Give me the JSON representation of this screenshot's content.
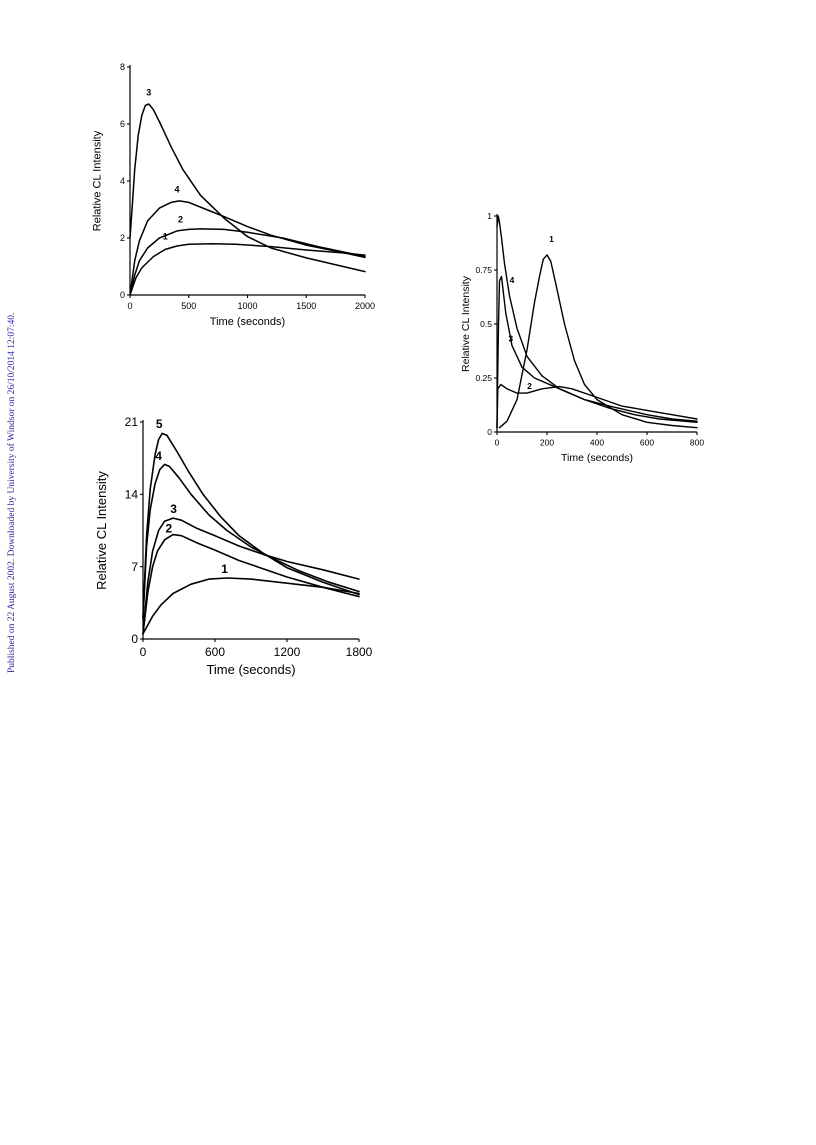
{
  "watermark": "Published on 22 August 2002. Downloaded by University of Windsor on 26/10/2014 12:07:40.",
  "chart_data": [
    {
      "type": "line",
      "title": "",
      "xlabel": "Time (seconds)",
      "ylabel": "Relative CL Intensity",
      "xlim": [
        0,
        2000
      ],
      "ylim": [
        0,
        8
      ],
      "xticks": [
        "0",
        "500",
        "1000",
        "1500",
        "2000"
      ],
      "yticks": [
        "0",
        "2",
        "4",
        "6",
        "8"
      ],
      "grid": false,
      "legend": "none",
      "series": [
        {
          "label": "1",
          "label_pos": [
            300,
            1.95
          ],
          "points": [
            [
              0,
              0
            ],
            [
              50,
              0.6
            ],
            [
              100,
              0.95
            ],
            [
              200,
              1.35
            ],
            [
              300,
              1.6
            ],
            [
              400,
              1.72
            ],
            [
              500,
              1.78
            ],
            [
              700,
              1.8
            ],
            [
              900,
              1.78
            ],
            [
              1200,
              1.7
            ],
            [
              1500,
              1.58
            ],
            [
              1800,
              1.48
            ],
            [
              2000,
              1.4
            ]
          ]
        },
        {
          "label": "2",
          "label_pos": [
            430,
            2.55
          ],
          "points": [
            [
              0,
              0
            ],
            [
              40,
              0.7
            ],
            [
              80,
              1.2
            ],
            [
              150,
              1.65
            ],
            [
              250,
              2.0
            ],
            [
              400,
              2.25
            ],
            [
              500,
              2.3
            ],
            [
              600,
              2.32
            ],
            [
              800,
              2.3
            ],
            [
              1000,
              2.2
            ],
            [
              1300,
              2.0
            ],
            [
              1600,
              1.7
            ],
            [
              2000,
              1.35
            ]
          ]
        },
        {
          "label": "3",
          "label_pos": [
            160,
            7.0
          ],
          "points": [
            [
              0,
              2.0
            ],
            [
              20,
              3.2
            ],
            [
              40,
              4.4
            ],
            [
              70,
              5.6
            ],
            [
              100,
              6.3
            ],
            [
              130,
              6.65
            ],
            [
              160,
              6.7
            ],
            [
              200,
              6.5
            ],
            [
              260,
              6.0
            ],
            [
              350,
              5.2
            ],
            [
              450,
              4.4
            ],
            [
              600,
              3.5
            ],
            [
              800,
              2.7
            ],
            [
              1000,
              2.05
            ],
            [
              1200,
              1.65
            ],
            [
              1500,
              1.3
            ],
            [
              2000,
              0.82
            ]
          ]
        },
        {
          "label": "4",
          "label_pos": [
            400,
            3.6
          ],
          "points": [
            [
              0,
              0
            ],
            [
              40,
              1.2
            ],
            [
              80,
              1.9
            ],
            [
              150,
              2.6
            ],
            [
              250,
              3.05
            ],
            [
              350,
              3.25
            ],
            [
              420,
              3.3
            ],
            [
              500,
              3.25
            ],
            [
              650,
              3.0
            ],
            [
              800,
              2.75
            ],
            [
              1000,
              2.4
            ],
            [
              1200,
              2.1
            ],
            [
              1500,
              1.75
            ],
            [
              1800,
              1.5
            ],
            [
              2000,
              1.32
            ]
          ]
        }
      ]
    },
    {
      "type": "line",
      "title": "",
      "xlabel": "Time (seconds)",
      "ylabel": "Relative CL Intensity",
      "xlim": [
        0,
        800
      ],
      "ylim": [
        0,
        1
      ],
      "xticks": [
        "0",
        "200",
        "400",
        "600",
        "800"
      ],
      "yticks": [
        "0",
        "0.25",
        "0.5",
        "0.75",
        "1"
      ],
      "grid": false,
      "legend": "none",
      "series": [
        {
          "label": "1",
          "label_pos": [
            218,
            0.88
          ],
          "points": [
            [
              10,
              0.02
            ],
            [
              40,
              0.05
            ],
            [
              80,
              0.15
            ],
            [
              120,
              0.38
            ],
            [
              150,
              0.6
            ],
            [
              170,
              0.72
            ],
            [
              185,
              0.8
            ],
            [
              200,
              0.82
            ],
            [
              215,
              0.79
            ],
            [
              240,
              0.66
            ],
            [
              270,
              0.5
            ],
            [
              310,
              0.33
            ],
            [
              350,
              0.22
            ],
            [
              400,
              0.15
            ],
            [
              500,
              0.08
            ],
            [
              600,
              0.045
            ],
            [
              700,
              0.03
            ],
            [
              800,
              0.02
            ]
          ]
        },
        {
          "label": "2",
          "label_pos": [
            130,
            0.2
          ],
          "points": [
            [
              0,
              0.02
            ],
            [
              3,
              0.2
            ],
            [
              15,
              0.22
            ],
            [
              40,
              0.2
            ],
            [
              80,
              0.18
            ],
            [
              120,
              0.18
            ],
            [
              180,
              0.2
            ],
            [
              250,
              0.21
            ],
            [
              300,
              0.2
            ],
            [
              400,
              0.16
            ],
            [
              500,
              0.12
            ],
            [
              600,
              0.1
            ],
            [
              700,
              0.08
            ],
            [
              800,
              0.06
            ]
          ]
        },
        {
          "label": "3",
          "label_pos": [
            55,
            0.42
          ],
          "points": [
            [
              0,
              0.02
            ],
            [
              2,
              0.2
            ],
            [
              6,
              0.5
            ],
            [
              10,
              0.7
            ],
            [
              18,
              0.72
            ],
            [
              35,
              0.55
            ],
            [
              60,
              0.4
            ],
            [
              100,
              0.3
            ],
            [
              150,
              0.25
            ],
            [
              250,
              0.2
            ],
            [
              350,
              0.15
            ],
            [
              450,
              0.12
            ],
            [
              600,
              0.08
            ],
            [
              700,
              0.06
            ],
            [
              800,
              0.05
            ]
          ]
        },
        {
          "label": "4",
          "label_pos": [
            60,
            0.69
          ],
          "points": [
            [
              0,
              0.95
            ],
            [
              5,
              1.0
            ],
            [
              10,
              0.97
            ],
            [
              18,
              0.9
            ],
            [
              30,
              0.78
            ],
            [
              50,
              0.63
            ],
            [
              80,
              0.48
            ],
            [
              120,
              0.35
            ],
            [
              180,
              0.26
            ],
            [
              250,
              0.2
            ],
            [
              350,
              0.15
            ],
            [
              450,
              0.11
            ],
            [
              550,
              0.08
            ],
            [
              650,
              0.06
            ],
            [
              800,
              0.045
            ]
          ]
        }
      ]
    },
    {
      "type": "line",
      "title": "",
      "xlabel": "Time (seconds)",
      "ylabel": "Relative CL Intensity",
      "xlim": [
        0,
        1800
      ],
      "ylim": [
        0,
        21
      ],
      "xticks": [
        "0",
        "600",
        "1200",
        "1800"
      ],
      "yticks": [
        "0",
        "7",
        "14",
        "21"
      ],
      "grid": false,
      "legend": "none",
      "series": [
        {
          "label": "1",
          "label_pos": [
            680,
            6.4
          ],
          "points": [
            [
              0,
              0.5
            ],
            [
              80,
              2.2
            ],
            [
              150,
              3.3
            ],
            [
              250,
              4.4
            ],
            [
              400,
              5.3
            ],
            [
              550,
              5.8
            ],
            [
              700,
              5.9
            ],
            [
              900,
              5.8
            ],
            [
              1200,
              5.4
            ],
            [
              1500,
              5.0
            ],
            [
              1800,
              4.4
            ]
          ]
        },
        {
          "label": "2",
          "label_pos": [
            215,
            10.3
          ],
          "points": [
            [
              0,
              0.5
            ],
            [
              40,
              4.5
            ],
            [
              80,
              7.0
            ],
            [
              120,
              8.5
            ],
            [
              180,
              9.6
            ],
            [
              250,
              10.1
            ],
            [
              320,
              10.0
            ],
            [
              450,
              9.3
            ],
            [
              600,
              8.6
            ],
            [
              800,
              7.6
            ],
            [
              1000,
              6.8
            ],
            [
              1200,
              6.0
            ],
            [
              1500,
              5.0
            ],
            [
              1800,
              4.1
            ]
          ]
        },
        {
          "label": "3",
          "label_pos": [
            255,
            12.2
          ],
          "points": [
            [
              0,
              0.5
            ],
            [
              40,
              5.5
            ],
            [
              80,
              8.5
            ],
            [
              130,
              10.5
            ],
            [
              180,
              11.4
            ],
            [
              250,
              11.7
            ],
            [
              320,
              11.5
            ],
            [
              450,
              10.7
            ],
            [
              600,
              10.0
            ],
            [
              800,
              9.0
            ],
            [
              1000,
              8.2
            ],
            [
              1200,
              7.5
            ],
            [
              1500,
              6.7
            ],
            [
              1800,
              5.8
            ]
          ]
        },
        {
          "label": "4",
          "label_pos": [
            130,
            17.3
          ],
          "points": [
            [
              0,
              2.0
            ],
            [
              30,
              9.0
            ],
            [
              60,
              12.5
            ],
            [
              100,
              15.0
            ],
            [
              140,
              16.4
            ],
            [
              180,
              16.9
            ],
            [
              220,
              16.7
            ],
            [
              300,
              15.6
            ],
            [
              400,
              14.0
            ],
            [
              550,
              12.0
            ],
            [
              700,
              10.5
            ],
            [
              900,
              8.9
            ],
            [
              1100,
              7.7
            ],
            [
              1300,
              6.6
            ],
            [
              1550,
              5.5
            ],
            [
              1800,
              4.6
            ]
          ]
        },
        {
          "label": "5",
          "label_pos": [
            135,
            20.4
          ],
          "points": [
            [
              0,
              2.0
            ],
            [
              30,
              10.0
            ],
            [
              60,
              14.5
            ],
            [
              100,
              17.8
            ],
            [
              130,
              19.3
            ],
            [
              160,
              19.9
            ],
            [
              200,
              19.7
            ],
            [
              280,
              18.2
            ],
            [
              380,
              16.2
            ],
            [
              500,
              14.0
            ],
            [
              650,
              11.8
            ],
            [
              800,
              10.0
            ],
            [
              1000,
              8.3
            ],
            [
              1200,
              6.9
            ],
            [
              1500,
              5.5
            ],
            [
              1800,
              4.3
            ]
          ]
        }
      ]
    }
  ]
}
